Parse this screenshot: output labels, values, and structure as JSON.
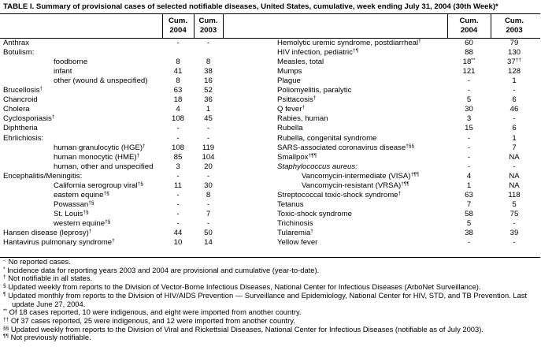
{
  "title": "TABLE I. Summary of provisional cases of selected notifiable diseases, United States, cumulative, week ending July 31, 2004 (30th Week)*",
  "headers": [
    {
      "line1": "Cum.",
      "line2": "2004"
    },
    {
      "line1": "Cum.",
      "line2": "2003"
    }
  ],
  "left_rows": [
    {
      "label": "Anthrax",
      "c2004": "-",
      "c2003": "-"
    },
    {
      "label": "Botulism:",
      "subrows": [
        {
          "label": "foodborne",
          "c2004": 8,
          "c2003": 8
        },
        {
          "label": "infant",
          "c2004": 41,
          "c2003": 38
        },
        {
          "label": "other (wound & unspecified)",
          "c2004": 8,
          "c2003": 16
        }
      ]
    },
    {
      "label": "Brucellosis",
      "mark": "†",
      "c2004": 63,
      "c2003": 52
    },
    {
      "label": "Chancroid",
      "c2004": 18,
      "c2003": 36
    },
    {
      "label": "Cholera",
      "c2004": 4,
      "c2003": 1
    },
    {
      "label": "Cyclosporiasis",
      "mark": "†",
      "c2004": 108,
      "c2003": 45
    },
    {
      "label": "Diphtheria",
      "c2004": "-",
      "c2003": "-"
    },
    {
      "label": "Ehrlichiosis:",
      "c2004": "-",
      "c2003": "-",
      "subrows": [
        {
          "label": "human granulocytic (HGE)",
          "mark": "†",
          "c2004": 108,
          "c2003": 119
        },
        {
          "label": "human monocytic (HME)",
          "mark": "†",
          "c2004": 85,
          "c2003": 104
        },
        {
          "label": "human, other and unspecified",
          "c2004": 3,
          "c2003": 20
        }
      ]
    },
    {
      "label": "Encephalitis/Meningitis:",
      "c2004": "-",
      "c2003": "-",
      "subrows": [
        {
          "label": "California serogroup viral",
          "mark": "†§",
          "c2004": 11,
          "c2003": 30
        },
        {
          "label": "eastern equine",
          "mark": "†§",
          "c2004": "-",
          "c2003": 8
        },
        {
          "label": "Powassan",
          "mark": "†§",
          "c2004": "-",
          "c2003": "-"
        },
        {
          "label": "St. Louis",
          "mark": "†§",
          "c2004": "-",
          "c2003": 7
        },
        {
          "label": "western equine",
          "mark": "†§",
          "c2004": "-",
          "c2003": "-"
        }
      ]
    },
    {
      "label": "Hansen disease (leprosy)",
      "mark": "†",
      "c2004": 44,
      "c2003": 50
    },
    {
      "label": "Hantavirus pulmonary syndrome",
      "mark": "†",
      "c2004": 10,
      "c2003": 14
    }
  ],
  "right_rows": [
    {
      "label": "Hemolytic uremic syndrome, postdiarrheal",
      "mark": "†",
      "c2004": 60,
      "c2003": 79
    },
    {
      "label": "HIV infection, pediatric",
      "mark": "†¶",
      "c2004": 88,
      "c2003": 130
    },
    {
      "label": "Measles, total",
      "c2004": 18,
      "c2004_mark": "**",
      "c2003": 37,
      "c2003_mark": "††"
    },
    {
      "label": "Mumps",
      "c2004": 121,
      "c2003": 128
    },
    {
      "label": "Plague",
      "c2004": "-",
      "c2003": 1
    },
    {
      "label": "Poliomyelitis, paralytic",
      "c2004": "-",
      "c2003": "-"
    },
    {
      "label": "Psittacosis",
      "mark": "†",
      "c2004": 5,
      "c2003": 6
    },
    {
      "label": "Q fever",
      "mark": "†",
      "c2004": 30,
      "c2003": 46
    },
    {
      "label": "Rabies, human",
      "c2004": 3,
      "c2003": "-"
    },
    {
      "label": "Rubella",
      "c2004": 15,
      "c2003": 6
    },
    {
      "label": "Rubella, congenital syndrome",
      "c2004": "-",
      "c2003": 1
    },
    {
      "label": "SARS-associated coronavirus disease",
      "mark": "†§§",
      "c2004": "-",
      "c2003": 7
    },
    {
      "label": "Smallpox",
      "mark": "†¶¶",
      "c2004": "-",
      "c2003": "NA"
    },
    {
      "label": "Staphylococcus aureus:",
      "italic": true,
      "c2004": "-",
      "c2003": "-",
      "subrows": [
        {
          "label": "Vancomycin-intermediate (VISA)",
          "mark": "†¶¶",
          "c2004": 4,
          "c2003": "NA"
        },
        {
          "label": "Vancomycin-resistant (VRSA)",
          "mark": "†¶¶",
          "c2004": 1,
          "c2003": "NA"
        }
      ]
    },
    {
      "label": "Streptococcal toxic-shock syndrome",
      "mark": "†",
      "c2004": 63,
      "c2003": 118
    },
    {
      "label": "Tetanus",
      "c2004": 7,
      "c2003": 5
    },
    {
      "label": "Toxic-shock syndrome",
      "c2004": 58,
      "c2003": 75
    },
    {
      "label": "Trichinosis",
      "c2004": 5,
      "c2003": "-"
    },
    {
      "label": "Tularemia",
      "mark": "†",
      "c2004": 38,
      "c2003": 39
    },
    {
      "label": "Yellow fever",
      "c2004": "-",
      "c2003": "-"
    }
  ],
  "footnotes": [
    {
      "mark": "-:",
      "text": "No reported cases."
    },
    {
      "mark": "*",
      "text": "Incidence data for reporting years 2003 and 2004 are provisional and cumulative (year-to-date)."
    },
    {
      "mark": "†",
      "text": "Not notifiable in all states."
    },
    {
      "mark": "§",
      "text": "Updated weekly from reports to the Division of Vector-Borne Infectious Diseases, National Center for Infectious Diseases (ArboNet Surveillance)."
    },
    {
      "mark": "¶",
      "text": "Updated monthly from reports to the Division of HIV/AIDS Prevention — Surveillance and Epidemiology, National Center for HIV, STD, and TB Prevention. Last update June 27, 2004."
    },
    {
      "mark": "**",
      "text": "Of 18 cases reported, 10 were indigenous, and eight were imported from another country."
    },
    {
      "mark": "††",
      "text": "Of 37 cases reported, 25 were indigenous, and 12 were imported from another country."
    },
    {
      "mark": "§§",
      "text": "Updated weekly from reports to the Division of Viral and Rickettsial Diseases, National Center for Infectious Diseases (notifiable as of July 2003)."
    },
    {
      "mark": "¶¶",
      "text": "Not previously notifiable."
    }
  ]
}
